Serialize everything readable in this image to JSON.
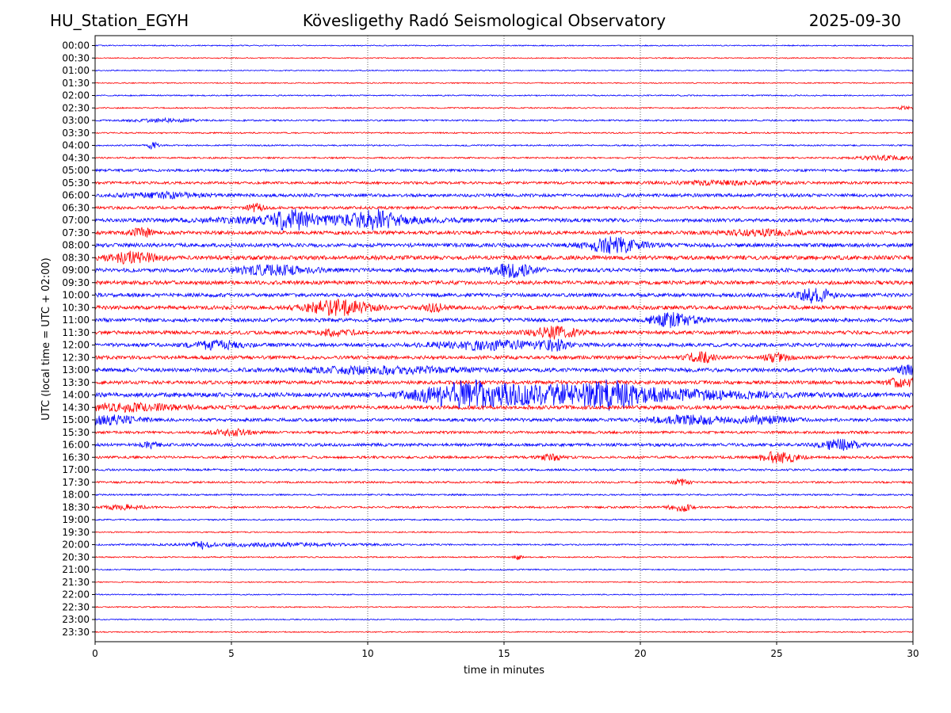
{
  "header": {
    "station": "HU_Station_EGYH",
    "title": "Kövesligethy Radó Seismological Observatory",
    "date": "2025-09-30"
  },
  "chart_data": {
    "type": "line",
    "title": "Kövesligethy Radó Seismological Observatory",
    "xlabel": "time in minutes",
    "ylabel": "UTC (local time = UTC + 02:00)",
    "xlim": [
      0,
      30
    ],
    "x_ticks": [
      0,
      5,
      10,
      15,
      20,
      25,
      30
    ],
    "grid": "vertical dotted at x ticks",
    "colors": [
      "#0000ff",
      "#ff0000"
    ],
    "rows": [
      {
        "label": "00:00",
        "noise": 0.7,
        "events": []
      },
      {
        "label": "00:30",
        "noise": 0.7,
        "events": []
      },
      {
        "label": "01:00",
        "noise": 0.7,
        "events": []
      },
      {
        "label": "01:30",
        "noise": 0.7,
        "events": []
      },
      {
        "label": "02:00",
        "noise": 0.8,
        "events": []
      },
      {
        "label": "02:30",
        "noise": 0.8,
        "events": [
          {
            "t": 29.7,
            "w": 0.2,
            "a": 2
          }
        ]
      },
      {
        "label": "03:00",
        "noise": 1.0,
        "events": [
          {
            "t": 2.5,
            "w": 0.8,
            "a": 2
          }
        ]
      },
      {
        "label": "03:30",
        "noise": 0.9,
        "events": []
      },
      {
        "label": "04:00",
        "noise": 0.9,
        "events": [
          {
            "t": 2.1,
            "w": 0.15,
            "a": 4
          }
        ]
      },
      {
        "label": "04:30",
        "noise": 1.0,
        "events": [
          {
            "t": 29.0,
            "w": 0.8,
            "a": 2.5
          }
        ]
      },
      {
        "label": "05:00",
        "noise": 1.6,
        "events": []
      },
      {
        "label": "05:30",
        "noise": 1.6,
        "events": [
          {
            "t": 23.0,
            "w": 1.5,
            "a": 2
          }
        ]
      },
      {
        "label": "06:00",
        "noise": 2.0,
        "events": [
          {
            "t": 2.5,
            "w": 1.0,
            "a": 3
          }
        ]
      },
      {
        "label": "06:30",
        "noise": 1.8,
        "events": [
          {
            "t": 5.9,
            "w": 0.2,
            "a": 5
          }
        ]
      },
      {
        "label": "07:00",
        "noise": 2.2,
        "events": [
          {
            "t": 7.2,
            "w": 0.5,
            "a": 9
          },
          {
            "t": 10.4,
            "w": 0.6,
            "a": 9
          },
          {
            "t": 8.5,
            "w": 3.0,
            "a": 4
          }
        ]
      },
      {
        "label": "07:30",
        "noise": 2.2,
        "events": [
          {
            "t": 1.7,
            "w": 0.3,
            "a": 5
          },
          {
            "t": 24.5,
            "w": 1.0,
            "a": 3
          }
        ]
      },
      {
        "label": "08:00",
        "noise": 2.4,
        "events": [
          {
            "t": 19.0,
            "w": 0.7,
            "a": 9
          }
        ]
      },
      {
        "label": "08:30",
        "noise": 2.6,
        "events": [
          {
            "t": 1.4,
            "w": 0.6,
            "a": 7
          }
        ]
      },
      {
        "label": "09:00",
        "noise": 2.4,
        "events": [
          {
            "t": 6.5,
            "w": 1.0,
            "a": 5
          },
          {
            "t": 15.2,
            "w": 0.6,
            "a": 8
          }
        ]
      },
      {
        "label": "09:30",
        "noise": 2.4,
        "events": []
      },
      {
        "label": "10:00",
        "noise": 2.3,
        "events": [
          {
            "t": 26.4,
            "w": 0.4,
            "a": 9
          }
        ]
      },
      {
        "label": "10:30",
        "noise": 2.4,
        "events": [
          {
            "t": 8.9,
            "w": 0.8,
            "a": 9
          },
          {
            "t": 12.5,
            "w": 0.3,
            "a": 4
          }
        ]
      },
      {
        "label": "11:00",
        "noise": 2.3,
        "events": [
          {
            "t": 21.2,
            "w": 0.6,
            "a": 8
          }
        ]
      },
      {
        "label": "11:30",
        "noise": 2.2,
        "events": [
          {
            "t": 16.9,
            "w": 0.6,
            "a": 7
          },
          {
            "t": 8.8,
            "w": 0.5,
            "a": 4
          }
        ]
      },
      {
        "label": "12:00",
        "noise": 2.3,
        "events": [
          {
            "t": 4.5,
            "w": 0.6,
            "a": 5
          },
          {
            "t": 14.5,
            "w": 1.5,
            "a": 5
          },
          {
            "t": 16.8,
            "w": 0.3,
            "a": 6
          }
        ]
      },
      {
        "label": "12:30",
        "noise": 2.2,
        "events": [
          {
            "t": 22.2,
            "w": 0.3,
            "a": 8
          },
          {
            "t": 25.0,
            "w": 0.3,
            "a": 5
          }
        ]
      },
      {
        "label": "13:00",
        "noise": 2.4,
        "events": [
          {
            "t": 10.5,
            "w": 2.0,
            "a": 4
          },
          {
            "t": 29.8,
            "w": 0.3,
            "a": 5
          }
        ]
      },
      {
        "label": "13:30",
        "noise": 2.2,
        "events": [
          {
            "t": 29.6,
            "w": 0.4,
            "a": 5
          }
        ]
      },
      {
        "label": "14:00",
        "noise": 2.8,
        "events": [
          {
            "t": 13.6,
            "w": 1.2,
            "a": 15
          },
          {
            "t": 17.3,
            "w": 1.8,
            "a": 10
          },
          {
            "t": 19.0,
            "w": 0.5,
            "a": 8
          },
          {
            "t": 21.0,
            "w": 2.5,
            "a": 5
          }
        ]
      },
      {
        "label": "14:30",
        "noise": 2.4,
        "events": [
          {
            "t": 1.0,
            "w": 1.5,
            "a": 4
          }
        ]
      },
      {
        "label": "15:00",
        "noise": 2.0,
        "events": [
          {
            "t": 0.5,
            "w": 0.8,
            "a": 5
          },
          {
            "t": 21.8,
            "w": 1.0,
            "a": 5
          },
          {
            "t": 24.5,
            "w": 0.8,
            "a": 4
          }
        ]
      },
      {
        "label": "15:30",
        "noise": 1.6,
        "events": [
          {
            "t": 5.0,
            "w": 0.5,
            "a": 4
          }
        ]
      },
      {
        "label": "16:00",
        "noise": 1.9,
        "events": [
          {
            "t": 2.0,
            "w": 0.2,
            "a": 4
          },
          {
            "t": 27.3,
            "w": 0.5,
            "a": 6
          }
        ]
      },
      {
        "label": "16:30",
        "noise": 1.6,
        "events": [
          {
            "t": 25.1,
            "w": 0.5,
            "a": 7
          },
          {
            "t": 16.7,
            "w": 0.3,
            "a": 4
          }
        ]
      },
      {
        "label": "17:00",
        "noise": 1.3,
        "events": []
      },
      {
        "label": "17:30",
        "noise": 1.2,
        "events": [
          {
            "t": 21.5,
            "w": 0.2,
            "a": 4
          }
        ]
      },
      {
        "label": "18:00",
        "noise": 1.0,
        "events": []
      },
      {
        "label": "18:30",
        "noise": 1.2,
        "events": [
          {
            "t": 21.5,
            "w": 0.3,
            "a": 5
          },
          {
            "t": 1.0,
            "w": 0.5,
            "a": 3
          }
        ]
      },
      {
        "label": "19:00",
        "noise": 0.9,
        "events": []
      },
      {
        "label": "19:30",
        "noise": 0.8,
        "events": []
      },
      {
        "label": "20:00",
        "noise": 0.9,
        "events": [
          {
            "t": 3.9,
            "w": 0.2,
            "a": 4
          },
          {
            "t": 6.5,
            "w": 2.5,
            "a": 2
          }
        ]
      },
      {
        "label": "20:30",
        "noise": 0.8,
        "events": [
          {
            "t": 15.5,
            "w": 0.1,
            "a": 3
          }
        ]
      },
      {
        "label": "21:00",
        "noise": 0.8,
        "events": []
      },
      {
        "label": "21:30",
        "noise": 0.7,
        "events": []
      },
      {
        "label": "22:00",
        "noise": 0.7,
        "events": []
      },
      {
        "label": "22:30",
        "noise": 0.7,
        "events": []
      },
      {
        "label": "23:00",
        "noise": 0.7,
        "events": []
      },
      {
        "label": "23:30",
        "noise": 0.7,
        "events": []
      }
    ]
  }
}
